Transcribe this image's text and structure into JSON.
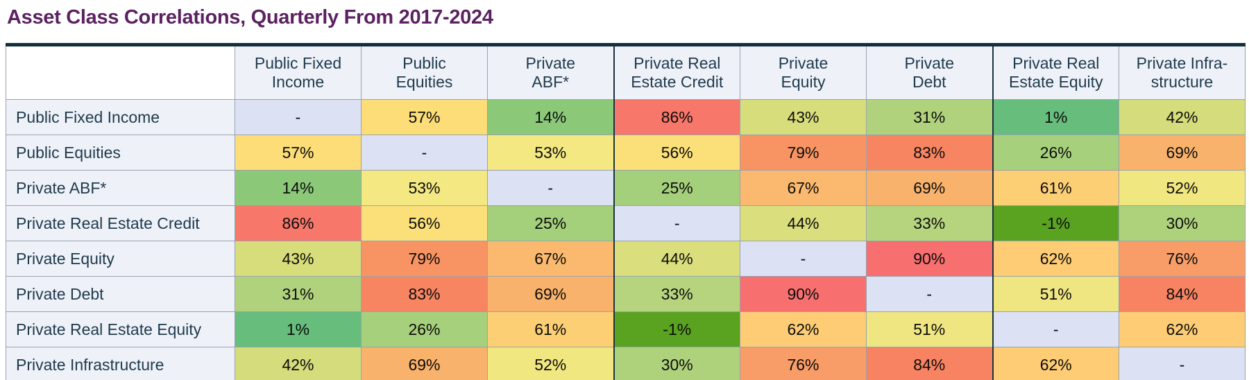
{
  "title": "Asset Class Correlations, Quarterly From 2017-2024",
  "chart_data": {
    "type": "heatmap",
    "title": "Asset Class Correlations, Quarterly From 2017-2024",
    "unit": "percent",
    "diagonal_display": "-",
    "columns": [
      "Public Fixed\nIncome",
      "Public\nEquities",
      "Private\nABF*",
      "Private Real\nEstate Credit",
      "Private\nEquity",
      "Private\nDebt",
      "Private Real\nEstate Equity",
      "Private Infra-\nstructure"
    ],
    "rows": [
      "Public Fixed Income",
      "Public Equities",
      "Private ABF*",
      "Private Real Estate Credit",
      "Private Equity",
      "Private Debt",
      "Private Real Estate Equity",
      "Private Infrastructure"
    ],
    "values": [
      [
        null,
        57,
        14,
        86,
        43,
        31,
        1,
        42
      ],
      [
        57,
        null,
        53,
        56,
        79,
        83,
        26,
        69
      ],
      [
        14,
        53,
        null,
        25,
        67,
        69,
        61,
        52
      ],
      [
        86,
        56,
        25,
        null,
        44,
        33,
        -1,
        30
      ],
      [
        43,
        79,
        67,
        44,
        null,
        90,
        62,
        76
      ],
      [
        31,
        83,
        69,
        33,
        90,
        null,
        51,
        84
      ],
      [
        1,
        26,
        61,
        -1,
        62,
        51,
        null,
        62
      ],
      [
        42,
        69,
        52,
        30,
        76,
        84,
        62,
        null
      ]
    ],
    "group_separator_after_columns": [
      3,
      6
    ],
    "colors": {
      "diagonal": "#dce2f3",
      "header_bg": "#eef1f8",
      "label_text": "#1e3a4c",
      "title_text": "#5b2161",
      "frame": "#132f3c",
      "grid": "#9aa2ad",
      "scale": {
        "-1": "#59a321",
        "1": "#66bd7c",
        "14": "#8bc878",
        "25": "#a4cf7b",
        "26": "#a6d07b",
        "30": "#aed27c",
        "31": "#b0d27d",
        "33": "#b6d47d",
        "42": "#d4dc7b",
        "43": "#d7dd7b",
        "44": "#dade7c",
        "51": "#efe682",
        "52": "#f1e781",
        "53": "#f3e881",
        "56": "#fbe07a",
        "57": "#fcdd78",
        "61": "#fdcf75",
        "62": "#fdcc74",
        "67": "#fab96e",
        "69": "#f9b26b",
        "76": "#f89d67",
        "79": "#f89464",
        "83": "#f78562",
        "84": "#f78362",
        "86": "#f7776a",
        "90": "#f76f6f"
      }
    }
  }
}
